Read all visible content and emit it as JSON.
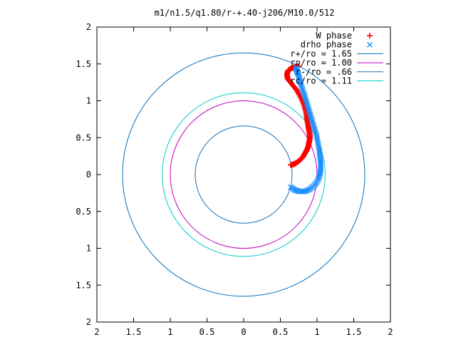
{
  "chart_data": {
    "type": "scatter",
    "title": "m1/n1.5/q1.80/r-+.40-j206/M10.0/512",
    "xlabel": "",
    "ylabel": "",
    "xlim": [
      -2,
      2
    ],
    "ylim": [
      -2,
      2
    ],
    "grid": false,
    "legend_position": "top-right",
    "x_ticks": [
      {
        "value": -2,
        "label": "2"
      },
      {
        "value": -1.5,
        "label": "1.5"
      },
      {
        "value": -1,
        "label": "1"
      },
      {
        "value": -0.5,
        "label": "0.5"
      },
      {
        "value": 0,
        "label": "0"
      },
      {
        "value": 0.5,
        "label": "0.5"
      },
      {
        "value": 1,
        "label": "1"
      },
      {
        "value": 1.5,
        "label": "1.5"
      },
      {
        "value": 2,
        "label": "2"
      }
    ],
    "y_ticks": [
      {
        "value": 2,
        "label": "2"
      },
      {
        "value": 1.5,
        "label": "1.5"
      },
      {
        "value": 1,
        "label": "1"
      },
      {
        "value": 0.5,
        "label": "0.5"
      },
      {
        "value": 0,
        "label": "0"
      },
      {
        "value": -0.5,
        "label": "0.5"
      },
      {
        "value": -1,
        "label": "1"
      },
      {
        "value": -1.5,
        "label": "1.5"
      },
      {
        "value": -2,
        "label": "2"
      }
    ],
    "series": [
      {
        "name": "W phase",
        "marker": "+",
        "color": "#ff0000",
        "x": [
          0.64,
          0.68,
          0.72,
          0.76,
          0.8,
          0.83,
          0.86,
          0.88,
          0.89,
          0.9,
          0.9,
          0.89,
          0.88,
          0.87,
          0.86,
          0.85,
          0.83,
          0.8,
          0.76,
          0.72,
          0.67,
          0.63,
          0.6,
          0.59,
          0.6,
          0.63,
          0.67,
          0.71,
          0.75
        ],
        "y": [
          0.13,
          0.14,
          0.16,
          0.19,
          0.23,
          0.28,
          0.33,
          0.38,
          0.43,
          0.48,
          0.54,
          0.6,
          0.66,
          0.72,
          0.78,
          0.85,
          0.92,
          1.0,
          1.08,
          1.15,
          1.21,
          1.26,
          1.3,
          1.35,
          1.4,
          1.43,
          1.45,
          1.46,
          1.47
        ]
      },
      {
        "name": "drho phase",
        "marker": "x",
        "color": "#1e90ff",
        "x": [
          0.64,
          0.7,
          0.76,
          0.83,
          0.9,
          0.96,
          1.01,
          1.04,
          1.05,
          1.05,
          1.04,
          1.03,
          1.01,
          0.99,
          0.96,
          0.93,
          0.9,
          0.87,
          0.84,
          0.81,
          0.78,
          0.76,
          0.74,
          0.72,
          0.71
        ],
        "y": [
          -0.17,
          -0.21,
          -0.23,
          -0.23,
          -0.2,
          -0.15,
          -0.08,
          0.0,
          0.08,
          0.16,
          0.25,
          0.34,
          0.44,
          0.54,
          0.64,
          0.74,
          0.84,
          0.94,
          1.04,
          1.13,
          1.22,
          1.3,
          1.37,
          1.42,
          1.45
        ]
      }
    ],
    "circles": [
      {
        "name": "r+/ro = 1.65",
        "radius": 1.65,
        "color": "#0072bd"
      },
      {
        "name": "ro/ro = 1.00",
        "radius": 1.0,
        "color": "#c000c0"
      },
      {
        "name": "r-/ro = .66",
        "radius": 0.66,
        "color": "#1a6cb0"
      },
      {
        "name": "rc/ro = 1.11",
        "radius": 1.11,
        "color": "#00c8c8"
      }
    ]
  }
}
